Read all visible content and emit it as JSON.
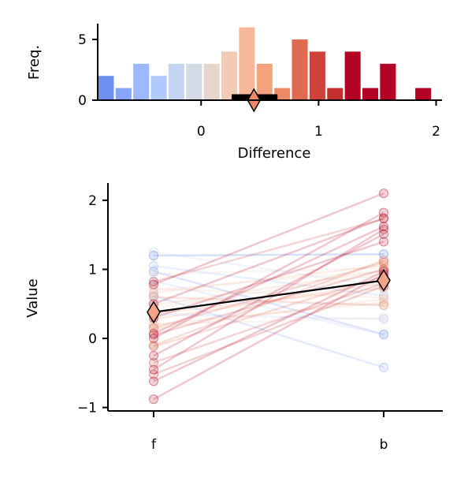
{
  "chart_data": [
    {
      "type": "bar",
      "xlabel": "Difference",
      "ylabel": "Freq.",
      "xlim": [
        -0.88,
        2.03
      ],
      "ylim": [
        0,
        6.3
      ],
      "xticks": [
        0,
        1,
        2
      ],
      "yticks": [
        0,
        5
      ],
      "bin_width": 0.148,
      "bins": [
        {
          "center": -0.81,
          "value": 2,
          "color": "#6e8ff0"
        },
        {
          "center": -0.66,
          "value": 1,
          "color": "#86a4f8"
        },
        {
          "center": -0.51,
          "value": 3,
          "color": "#9ab9ff"
        },
        {
          "center": -0.36,
          "value": 2,
          "color": "#b0caff"
        },
        {
          "center": -0.21,
          "value": 3,
          "color": "#c4d5f3"
        },
        {
          "center": -0.06,
          "value": 3,
          "color": "#d4dbe6"
        },
        {
          "center": 0.09,
          "value": 3,
          "color": "#e6d6cc"
        },
        {
          "center": 0.24,
          "value": 4,
          "color": "#f1cbb5"
        },
        {
          "center": 0.39,
          "value": 6,
          "color": "#f6b89b"
        },
        {
          "center": 0.54,
          "value": 3,
          "color": "#f5a27f"
        },
        {
          "center": 0.69,
          "value": 1,
          "color": "#ef8a67"
        },
        {
          "center": 0.84,
          "value": 5,
          "color": "#e06a50"
        },
        {
          "center": 0.99,
          "value": 4,
          "color": "#cd423a"
        },
        {
          "center": 1.14,
          "value": 1,
          "color": "#c3302f"
        },
        {
          "center": 1.29,
          "value": 4,
          "color": "#b40426"
        },
        {
          "center": 1.44,
          "value": 1,
          "color": "#b40426"
        },
        {
          "center": 1.59,
          "value": 3,
          "color": "#b40426"
        },
        {
          "center": 1.89,
          "value": 1,
          "color": "#b40426"
        }
      ],
      "mean_diff": 0.45,
      "ci": [
        0.26,
        0.65
      ],
      "mean_color": "#ef8a67"
    },
    {
      "type": "line",
      "ylabel": "Value",
      "categories": [
        "f",
        "b"
      ],
      "ylim": [
        -1.05,
        2.25
      ],
      "yticks": [
        -1,
        0,
        1,
        2
      ],
      "mean": [
        0.38,
        0.84
      ],
      "mean_marker_color": "#f3a486",
      "pairs": [
        [
          1.2,
          1.22,
          "#4a78e6"
        ],
        [
          0.97,
          0.06,
          "#6e8ff0"
        ],
        [
          0.62,
          -0.42,
          "#86a4f8"
        ],
        [
          1.05,
          0.62,
          "#9ab9ff"
        ],
        [
          0.35,
          0.28,
          "#b0caff"
        ],
        [
          1.25,
          0.75,
          "#c4d5f3"
        ],
        [
          0.83,
          0.05,
          "#b0caff"
        ],
        [
          0.55,
          0.48,
          "#d4dbe6"
        ],
        [
          0.93,
          1.02,
          "#e6d6cc"
        ],
        [
          0.7,
          0.98,
          "#e6d6cc"
        ],
        [
          0.2,
          0.3,
          "#e6d6cc"
        ],
        [
          0.72,
          0.59,
          "#f1cbb5"
        ],
        [
          0.44,
          0.93,
          "#f1cbb5"
        ],
        [
          0.2,
          0.52,
          "#f6b89b"
        ],
        [
          0.14,
          0.57,
          "#f6b89b"
        ],
        [
          0.48,
          0.98,
          "#f6b89b"
        ],
        [
          0.66,
          1.06,
          "#f6b89b"
        ],
        [
          0.36,
          0.73,
          "#f5a27f"
        ],
        [
          0.28,
          0.8,
          "#f5a27f"
        ],
        [
          -0.1,
          1.13,
          "#e06a50"
        ],
        [
          -0.12,
          0.9,
          "#e06a50"
        ],
        [
          0.6,
          0.48,
          "#ef8a67"
        ],
        [
          0.82,
          1.73,
          "#cd423a"
        ],
        [
          0.15,
          1.1,
          "#e06a50"
        ],
        [
          0.05,
          1.0,
          "#cd423a"
        ],
        [
          -0.35,
          0.8,
          "#cd423a"
        ],
        [
          -0.52,
          0.76,
          "#c3302f"
        ],
        [
          0.07,
          1.62,
          "#b40426"
        ],
        [
          -0.25,
          1.51,
          "#b40426"
        ],
        [
          0.5,
          1.74,
          "#b40426"
        ],
        [
          0.3,
          1.4,
          "#b40426"
        ],
        [
          -0.62,
          0.97,
          "#b40426"
        ],
        [
          -0.45,
          1.58,
          "#b40426"
        ],
        [
          0.78,
          2.1,
          "#b40426"
        ],
        [
          -0.88,
          0.93,
          "#b40426"
        ],
        [
          0.0,
          1.82,
          "#b40426"
        ]
      ]
    }
  ]
}
